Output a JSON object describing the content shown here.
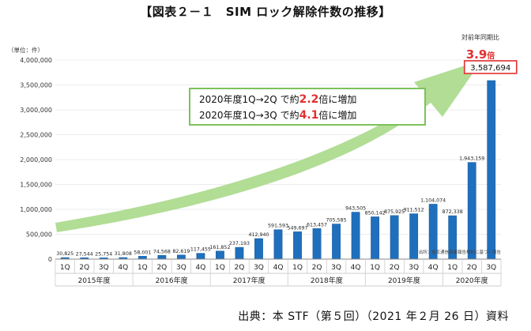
{
  "figure": {
    "title": "【図表２－１　SIM ロック解除件数の推移】",
    "source": "出典：本 STF（第５回）（2021 年２月 26 日）資料"
  },
  "chart_data": {
    "type": "bar",
    "unit_label": "（単位：件）",
    "yticks": [
      "4,000,000",
      "3,500,000",
      "3,000,000",
      "2,500,000",
      "2,000,000",
      "1,500,000",
      "1,000,000",
      "500,000",
      "0"
    ],
    "ylim": [
      0,
      4000000
    ],
    "quarters": [
      "1Q",
      "2Q",
      "3Q",
      "4Q",
      "1Q",
      "2Q",
      "3Q",
      "4Q",
      "1Q",
      "2Q",
      "3Q",
      "4Q",
      "1Q",
      "2Q",
      "3Q",
      "4Q",
      "1Q",
      "2Q",
      "3Q",
      "4Q",
      "1Q",
      "2Q",
      "3Q"
    ],
    "years": [
      {
        "label": "2015年度",
        "count": 4
      },
      {
        "label": "2016年度",
        "count": 4
      },
      {
        "label": "2017年度",
        "count": 4
      },
      {
        "label": "2018年度",
        "count": 4
      },
      {
        "label": "2019年度",
        "count": 4
      },
      {
        "label": "2020年度",
        "count": 3
      }
    ],
    "values": [
      30825,
      27544,
      25754,
      31808,
      58001,
      74568,
      82619,
      117455,
      161852,
      237193,
      412940,
      591593,
      549697,
      613457,
      705585,
      943505,
      850142,
      875925,
      911512,
      1104074,
      872338,
      1943159,
      3587694
    ],
    "labels": [
      "30,825",
      "27,544",
      "25,754",
      "31,808",
      "58,001",
      "74,568",
      "82,619",
      "117,455",
      "161,852",
      "237,193",
      "412,940",
      "591,593",
      "549,697",
      "613,457",
      "705,585",
      "943,505",
      "850,142",
      "875,925",
      "911,512",
      "1,104,074",
      "872,338",
      "1,943,159",
      "3,587,694"
    ],
    "colors": {
      "bar": "#1f6fbd",
      "bar_edge": "#155a9c",
      "arrow": "#a9d98a",
      "callout_border": "#7cc25a",
      "highlight": "#e23030",
      "grid": "#e6e6e6"
    },
    "yoy": {
      "caption": "対前年同期比",
      "value": "3.9",
      "unit": "倍"
    },
    "callout": [
      {
        "before": "2020年度1Q→2Q で約",
        "value": "2.2",
        "after": "倍に増加"
      },
      {
        "before": "2020年度1Q→3Q で約",
        "value": "4.1",
        "after": "倍に増加"
      }
    ],
    "note": "出所：電気通信事業報告規則に基づく報告"
  }
}
